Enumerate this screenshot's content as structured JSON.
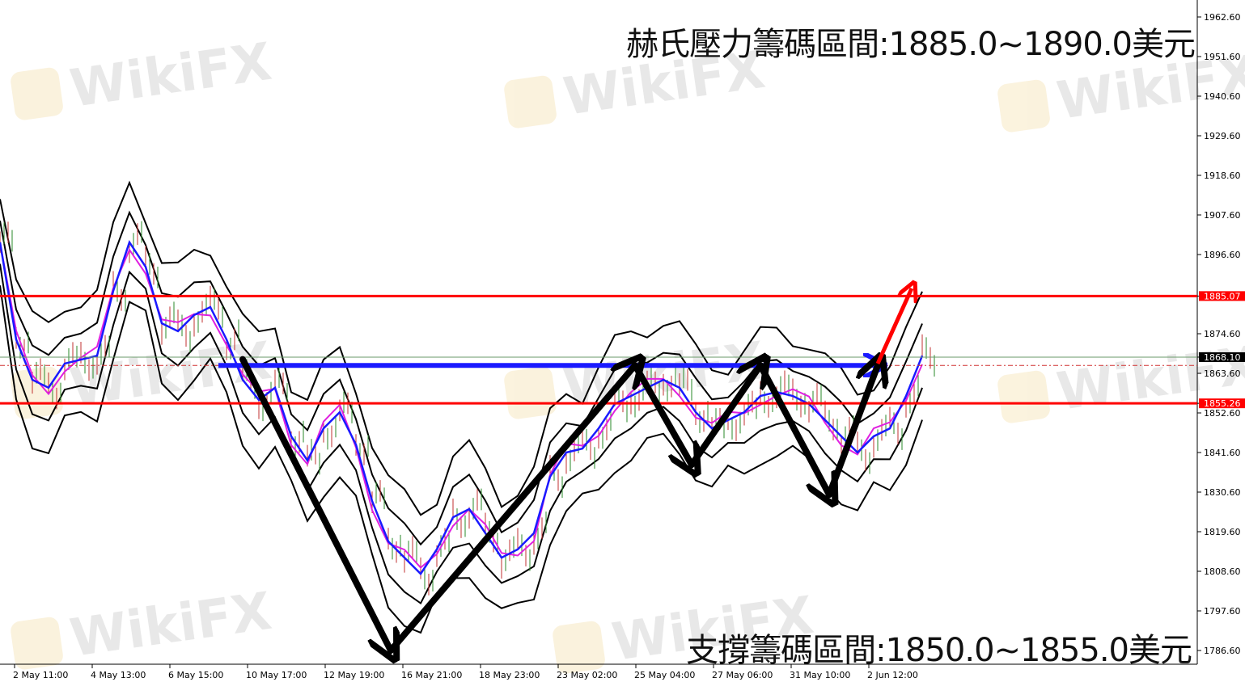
{
  "chart_data": {
    "type": "line",
    "title_resistance": "赫氏壓力籌碼區間:1885.0~1890.0美元",
    "title_support": "支撐籌碼區間:1850.0~1855.0美元",
    "watermark": "WikiFX",
    "ylim": [
      1786.6,
      1962.6
    ],
    "y_ticks": [
      "1962.60",
      "1951.60",
      "1940.60",
      "1929.60",
      "1918.60",
      "1907.60",
      "1896.60",
      "1885.07",
      "1874.60",
      "1868.10",
      "1863.60",
      "1855.26",
      "1852.60",
      "1841.60",
      "1830.60",
      "1819.60",
      "1808.60",
      "1797.60",
      "1786.60"
    ],
    "x_ticks": [
      "2 May 11:00",
      "4 May 13:00",
      "6 May 15:00",
      "10 May 17:00",
      "12 May 19:00",
      "16 May 21:00",
      "18 May 23:00",
      "23 May 02:00",
      "25 May 04:00",
      "27 May 06:00",
      "31 May 10:00",
      "2 Jun 12:00"
    ],
    "series": [
      {
        "role": "moving-average",
        "color": "#1a1aff",
        "values": [
          1900,
          1873,
          1861.8,
          1859.6,
          1866.3,
          1867.4,
          1868.5,
          1886.5,
          1900,
          1893.2,
          1877.5,
          1875.3,
          1879.8,
          1882,
          1873,
          1861.8,
          1856.2,
          1859.6,
          1846.1,
          1839.4,
          1848.3,
          1852.8,
          1843.8,
          1828.1,
          1816.9,
          1812.4,
          1807.9,
          1814.7,
          1823.6,
          1825.9,
          1819.2,
          1812.4,
          1814.7,
          1819.2,
          1834.9,
          1841.6,
          1842.7,
          1848.3,
          1855.1,
          1857.3,
          1859.6,
          1861.8,
          1859.6,
          1852.8,
          1848.3,
          1850.6,
          1852.8,
          1857.3,
          1858.4,
          1857.3,
          1855.1,
          1850.6,
          1846.1,
          1841.6,
          1846.1,
          1848.3,
          1857.3,
          1868.5
        ]
      },
      {
        "role": "fast-average",
        "color": "#e020e0"
      },
      {
        "role": "bollinger-inner",
        "color": "#000000",
        "offset": 6
      },
      {
        "role": "bollinger-outer",
        "color": "#000000",
        "offset": 12
      }
    ],
    "levels": [
      {
        "label": "1885.07",
        "value": 1885.07,
        "color": "#ff0000"
      },
      {
        "label": "1855.26",
        "value": 1855.26,
        "color": "#ff0000"
      },
      {
        "label": "1868.10",
        "value": 1868.1,
        "color": "#000000"
      }
    ],
    "annotations": {
      "blue_arrow": {
        "from": [
          13.5,
          1865.8
        ],
        "to": [
          54.25,
          1865.8
        ],
        "color": "#1a1aff"
      },
      "black_zigzag": {
        "points": [
          [
            15,
            1867.5
          ],
          [
            24.15,
            1786.6
          ],
          [
            39.25,
            1865.8
          ],
          [
            42.75,
            1838.2
          ],
          [
            47,
            1865.8
          ],
          [
            51.25,
            1829.9
          ],
          [
            54.25,
            1865.8
          ]
        ],
        "color": "#000000"
      },
      "red_arrow": {
        "from": [
          54.25,
          1866.3
        ],
        "to": [
          56.35,
          1887.2
        ],
        "color": "#ff0000"
      }
    }
  }
}
